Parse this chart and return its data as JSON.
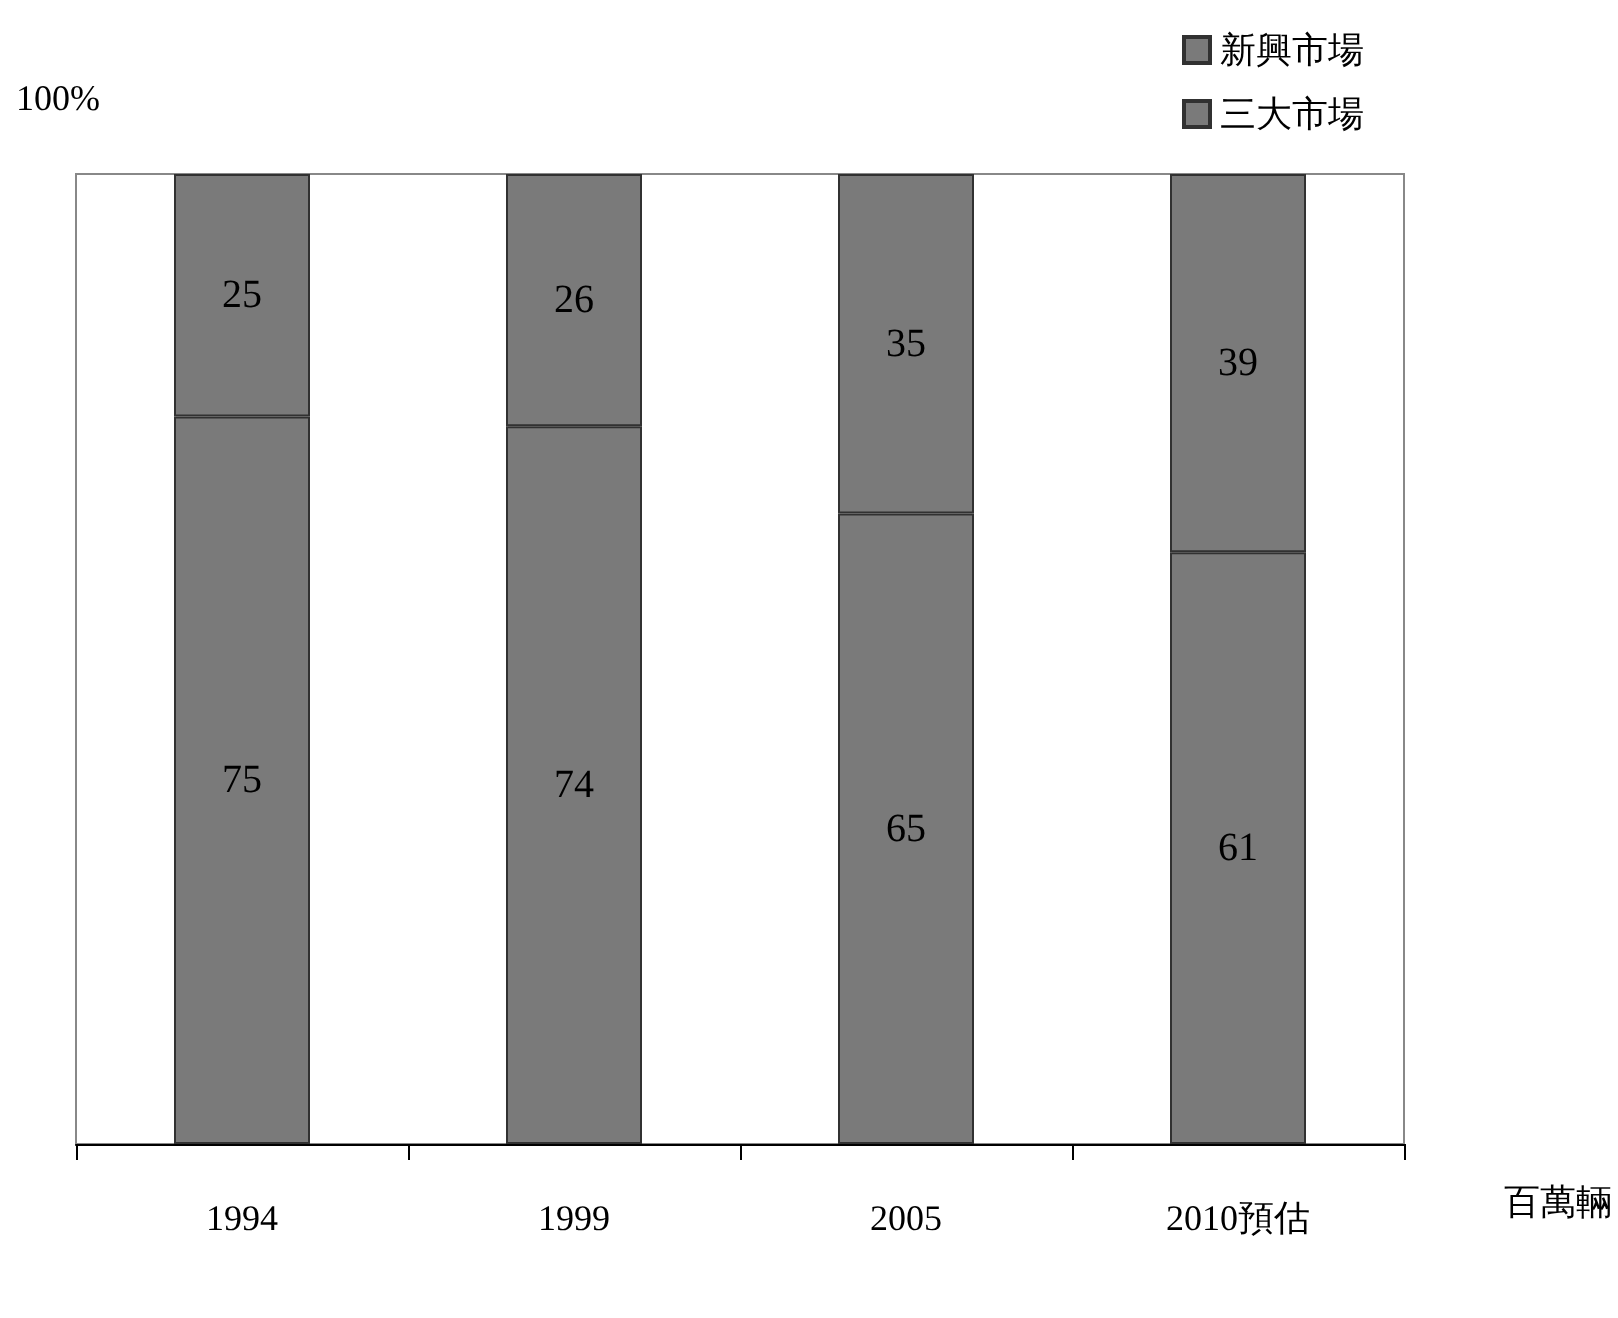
{
  "chart_data": {
    "type": "bar",
    "stacked": true,
    "ylabel": "100%",
    "xlabel": "百萬輛",
    "categories": [
      "1994",
      "1999",
      "2005",
      "2010預估"
    ],
    "series": [
      {
        "name": "三大市場",
        "color": "#7a7a7a",
        "values": [
          75,
          74,
          65,
          61
        ]
      },
      {
        "name": "新興市場",
        "color": "#7a7a7a",
        "values": [
          25,
          26,
          35,
          39
        ]
      }
    ],
    "ylim": [
      0,
      100
    ],
    "tick_labels": "x",
    "data_labels": true,
    "grid": false,
    "legend": "top right"
  }
}
